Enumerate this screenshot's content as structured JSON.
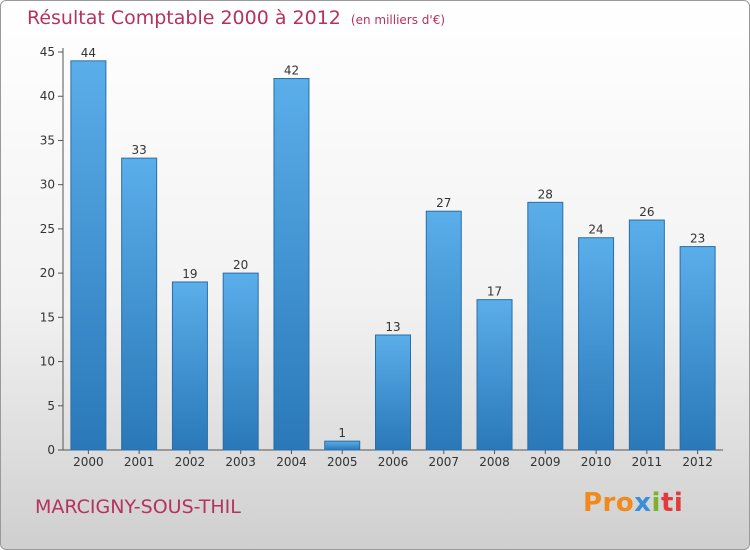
{
  "header": {
    "title": "Résultat Comptable 2000 à 2012",
    "subtitle": "(en milliers d'€)"
  },
  "footer": {
    "commune": "MARCIGNY-SOUS-THIL",
    "logo_text": "Proxiti",
    "logo_colors": [
      "#f08a1c",
      "#3a8fd8",
      "#7ab32e",
      "#e13b3b"
    ]
  },
  "colors": {
    "bar_top": "#5aaeea",
    "bar_bottom": "#2a78b8",
    "title": "#b5325f"
  },
  "chart_data": {
    "type": "bar",
    "title": "Résultat Comptable 2000 à 2012",
    "subtitle": "(en milliers d'€)",
    "xlabel": "",
    "ylabel": "",
    "categories": [
      "2000",
      "2001",
      "2002",
      "2003",
      "2004",
      "2005",
      "2006",
      "2007",
      "2008",
      "2009",
      "2010",
      "2011",
      "2012"
    ],
    "values": [
      44,
      33,
      19,
      20,
      42,
      1,
      13,
      27,
      17,
      28,
      24,
      26,
      23
    ],
    "ylim": [
      0,
      45
    ],
    "yticks": [
      0,
      5,
      10,
      15,
      20,
      25,
      30,
      35,
      40,
      45
    ],
    "grid": false,
    "legend": "none"
  }
}
